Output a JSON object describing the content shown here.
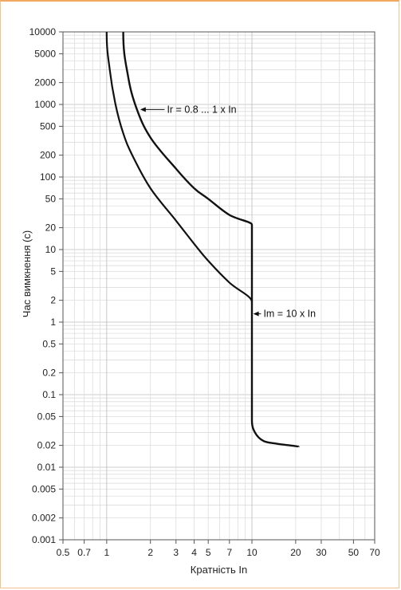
{
  "chart_data": {
    "type": "line",
    "title": "",
    "xlabel": "Кратність In",
    "ylabel": "Час вимкнення (с)",
    "x_scale": "log",
    "y_scale": "log",
    "xlim": [
      0.5,
      70
    ],
    "ylim": [
      0.001,
      10000
    ],
    "grid": true,
    "x_ticks": [
      0.5,
      0.7,
      1,
      2,
      3,
      4,
      5,
      7,
      10,
      20,
      30,
      50,
      70
    ],
    "x_tick_labels": [
      "0.5",
      "0.7",
      "1",
      "2",
      "3",
      "4",
      "5",
      "7",
      "10",
      "20",
      "30",
      "50",
      "70"
    ],
    "y_ticks": [
      0.001,
      0.002,
      0.005,
      0.01,
      0.02,
      0.05,
      0.1,
      0.2,
      0.5,
      1,
      2,
      5,
      10,
      20,
      50,
      100,
      200,
      500,
      1000,
      2000,
      5000,
      10000
    ],
    "y_tick_labels": [
      "0.001",
      "0.002",
      "0.005",
      "0.01",
      "0.02",
      "0.05",
      "0.1",
      "0.2",
      "0.5",
      "1",
      "2",
      "5",
      "10",
      "20",
      "50",
      "100",
      "200",
      "500",
      "1000",
      "2000",
      "5000",
      "10000"
    ],
    "series": [
      {
        "points": [
          [
            1.0,
            10000
          ],
          [
            1.05,
            3000
          ],
          [
            1.15,
            1000
          ],
          [
            1.3,
            400
          ],
          [
            1.5,
            200
          ],
          [
            2,
            70
          ],
          [
            3,
            25
          ],
          [
            4,
            12
          ],
          [
            5,
            7
          ],
          [
            7,
            3.5
          ],
          [
            10,
            1.9
          ]
        ]
      },
      {
        "points": [
          [
            1.3,
            10000
          ],
          [
            1.4,
            2500
          ],
          [
            1.6,
            900
          ],
          [
            2,
            350
          ],
          [
            3,
            130
          ],
          [
            4,
            70
          ],
          [
            5,
            50
          ],
          [
            7,
            30
          ],
          [
            10,
            22
          ],
          [
            10,
            0.045
          ],
          [
            10.5,
            0.03
          ],
          [
            12,
            0.023
          ],
          [
            15,
            0.021
          ],
          [
            21,
            0.019
          ]
        ]
      }
    ],
    "annotations": [
      {
        "text": "Ir = 0.8 ... 1 x In",
        "x": 2.6,
        "y": 850,
        "arrow_to": [
          1.7,
          850
        ]
      },
      {
        "text": "Im = 10 x In",
        "x": 12,
        "y": 1.3,
        "arrow_to": [
          10.2,
          1.3
        ]
      }
    ]
  }
}
